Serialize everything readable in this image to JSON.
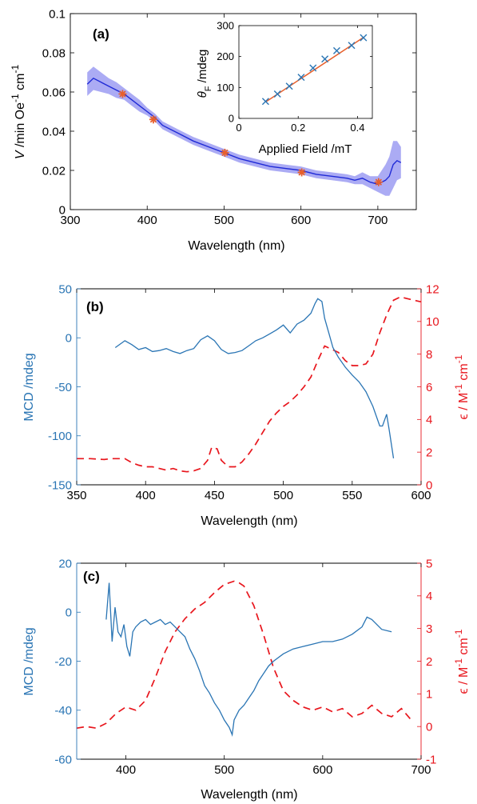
{
  "chart_data": [
    {
      "panel": "(a)",
      "type": "line",
      "xlabel": "Wavelength (nm)",
      "ylabel": "V /min Oe -1 cm -1",
      "ylabel_parts": {
        "v": "V",
        "unit": " /min Oe",
        "sup1": "-1",
        "cm": " cm",
        "sup2": "-1"
      },
      "xlim": [
        300,
        750
      ],
      "ylim": [
        0,
        0.1
      ],
      "xticks": [
        "300",
        "400",
        "500",
        "600",
        "700"
      ],
      "yticks": [
        "0",
        "0.02",
        "0.04",
        "0.06",
        "0.08",
        "0.1"
      ],
      "series": [
        {
          "role": "verdet-spectrum",
          "color": "#1f2ad6",
          "band_color": "#8f8ff0",
          "x": [
            322,
            330,
            340,
            350,
            360,
            370,
            380,
            390,
            400,
            410,
            420,
            440,
            460,
            480,
            500,
            520,
            540,
            560,
            580,
            600,
            620,
            640,
            660,
            670,
            680,
            690,
            700,
            705,
            710,
            715,
            720,
            725,
            730
          ],
          "values": [
            0.064,
            0.067,
            0.065,
            0.063,
            0.061,
            0.059,
            0.056,
            0.053,
            0.05,
            0.047,
            0.043,
            0.039,
            0.035,
            0.032,
            0.029,
            0.026,
            0.024,
            0.022,
            0.021,
            0.02,
            0.018,
            0.017,
            0.016,
            0.015,
            0.016,
            0.014,
            0.013,
            0.014,
            0.015,
            0.017,
            0.023,
            0.025,
            0.024
          ],
          "band": [
            0.006,
            0.006,
            0.005,
            0.004,
            0.004,
            0.003,
            0.003,
            0.003,
            0.002,
            0.002,
            0.002,
            0.002,
            0.002,
            0.002,
            0.002,
            0.002,
            0.002,
            0.002,
            0.002,
            0.002,
            0.002,
            0.002,
            0.002,
            0.002,
            0.003,
            0.003,
            0.004,
            0.006,
            0.008,
            0.01,
            0.012,
            0.01,
            0.008
          ]
        },
        {
          "role": "measured-points",
          "marker": "asterisk",
          "color": "#e8602c",
          "x": [
            368,
            408,
            501,
            601,
            701
          ],
          "values": [
            0.059,
            0.046,
            0.029,
            0.019,
            0.014
          ]
        }
      ],
      "inset": {
        "type": "scatter",
        "xlabel": "Applied Field /mT",
        "ylabel_parts": {
          "theta": "θ",
          "sub": "F",
          "unit": " /mdeg"
        },
        "xlim": [
          0,
          0.45
        ],
        "ylim": [
          0,
          300
        ],
        "xticks": [
          "0",
          "0.2",
          "0.4"
        ],
        "yticks": [
          "0",
          "100",
          "200",
          "300"
        ],
        "series": [
          {
            "role": "data",
            "marker": "x",
            "color": "#2a75b4",
            "x": [
              0.09,
              0.13,
              0.17,
              0.21,
              0.25,
              0.29,
              0.33,
              0.38,
              0.42
            ],
            "values": [
              55,
              79,
              104,
              133,
              163,
              192,
              219,
              236,
              261
            ]
          },
          {
            "role": "fit",
            "color": "#e8602c",
            "x": [
              0.09,
              0.42
            ],
            "values": [
              53,
              262
            ]
          }
        ]
      }
    },
    {
      "panel": "(b)",
      "type": "line",
      "xlabel": "Wavelength (nm)",
      "ylabel_left": "MCD /mdeg",
      "ylabel_right_parts": {
        "eps": "ϵ",
        "unit": " / M",
        "sup1": "-1",
        "cm": " cm",
        "sup2": "-1"
      },
      "xlim": [
        350,
        600
      ],
      "ylim_left": [
        -150,
        50
      ],
      "ylim_right": [
        0,
        12
      ],
      "xticks": [
        "350",
        "400",
        "450",
        "500",
        "550",
        "600"
      ],
      "yticks_left": [
        "-150",
        "-100",
        "-50",
        "0",
        "50"
      ],
      "yticks_right": [
        "0",
        "2",
        "4",
        "6",
        "8",
        "10",
        "12"
      ],
      "series": [
        {
          "role": "MCD",
          "axis": "left",
          "color": "#2a75b4",
          "x": [
            378,
            385,
            390,
            395,
            400,
            405,
            410,
            415,
            420,
            425,
            430,
            435,
            440,
            445,
            450,
            455,
            460,
            465,
            470,
            475,
            480,
            485,
            490,
            495,
            500,
            505,
            510,
            515,
            520,
            523,
            525,
            528,
            530,
            533,
            536,
            540,
            545,
            550,
            555,
            560,
            565,
            570,
            572,
            575,
            577,
            580
          ],
          "values": [
            -10,
            -3,
            -7,
            -12,
            -10,
            -14,
            -13,
            -11,
            -14,
            -16,
            -13,
            -11,
            -2,
            2,
            -3,
            -12,
            -16,
            -15,
            -13,
            -8,
            -3,
            0,
            4,
            8,
            13,
            5,
            14,
            18,
            25,
            35,
            40,
            37,
            20,
            5,
            -10,
            -20,
            -30,
            -38,
            -45,
            -55,
            -70,
            -90,
            -90,
            -78,
            -95,
            -123
          ]
        },
        {
          "role": "extinction",
          "axis": "right",
          "color": "#e8161d",
          "dashed": true,
          "x": [
            350,
            360,
            370,
            375,
            380,
            385,
            390,
            395,
            400,
            405,
            410,
            415,
            420,
            425,
            430,
            435,
            440,
            445,
            448,
            452,
            455,
            460,
            465,
            470,
            475,
            480,
            485,
            490,
            495,
            500,
            505,
            510,
            515,
            520,
            525,
            530,
            535,
            540,
            545,
            550,
            555,
            560,
            565,
            570,
            575,
            580,
            585,
            590,
            595,
            600
          ],
          "values": [
            1.6,
            1.6,
            1.55,
            1.6,
            1.6,
            1.6,
            1.35,
            1.2,
            1.1,
            1.1,
            1.0,
            0.9,
            1.0,
            0.85,
            0.8,
            0.85,
            1.0,
            1.5,
            2.3,
            2.2,
            1.5,
            1.1,
            1.1,
            1.4,
            1.9,
            2.5,
            3.2,
            3.9,
            4.4,
            4.8,
            5.1,
            5.5,
            6.0,
            6.6,
            7.6,
            8.5,
            8.3,
            8.1,
            7.6,
            7.3,
            7.3,
            7.4,
            8.0,
            9.3,
            10.4,
            11.3,
            11.5,
            11.4,
            11.3,
            11.2
          ]
        }
      ]
    },
    {
      "panel": "(c)",
      "type": "line",
      "xlabel": "Wavelength (nm)",
      "ylabel_left": "MCD /mdeg",
      "ylabel_right_parts": {
        "eps": "ϵ",
        "unit": " / M",
        "sup1": "-1",
        "cm": " cm",
        "sup2": "-1"
      },
      "xlim": [
        350,
        700
      ],
      "ylim_left": [
        -60,
        20
      ],
      "ylim_right": [
        -1,
        5
      ],
      "xticks": [
        "400",
        "500",
        "600",
        "700"
      ],
      "yticks_left": [
        "-60",
        "-40",
        "-20",
        "0",
        "20"
      ],
      "yticks_right": [
        "-1",
        "0",
        "1",
        "2",
        "3",
        "4",
        "5"
      ],
      "series": [
        {
          "role": "MCD",
          "axis": "left",
          "color": "#2a75b4",
          "x": [
            380,
            383,
            386,
            389,
            392,
            395,
            398,
            401,
            404,
            407,
            410,
            415,
            420,
            425,
            430,
            435,
            440,
            445,
            450,
            455,
            460,
            465,
            470,
            475,
            480,
            485,
            490,
            495,
            500,
            505,
            508,
            510,
            515,
            520,
            525,
            530,
            535,
            540,
            545,
            550,
            560,
            570,
            580,
            590,
            600,
            610,
            620,
            630,
            640,
            645,
            650,
            660,
            670
          ],
          "values": [
            -3,
            12,
            -12,
            2,
            -8,
            -10,
            -5,
            -14,
            -18,
            -8,
            -6,
            -4,
            -3,
            -5,
            -4,
            -3,
            -5,
            -4,
            -6,
            -8,
            -10,
            -15,
            -19,
            -24,
            -30,
            -33,
            -37,
            -40,
            -44,
            -47,
            -50,
            -44,
            -40,
            -38,
            -35,
            -32,
            -28,
            -25,
            -22,
            -20,
            -17,
            -15,
            -14,
            -13,
            -12,
            -12,
            -11,
            -9,
            -6,
            -2,
            -3,
            -7,
            -8
          ]
        },
        {
          "role": "extinction",
          "axis": "right",
          "color": "#e8161d",
          "dashed": true,
          "x": [
            350,
            360,
            370,
            380,
            390,
            400,
            410,
            420,
            430,
            440,
            450,
            460,
            470,
            480,
            490,
            500,
            510,
            515,
            520,
            530,
            540,
            550,
            560,
            570,
            580,
            590,
            600,
            610,
            620,
            630,
            640,
            650,
            660,
            670,
            680,
            690
          ],
          "values": [
            -0.05,
            0.0,
            -0.05,
            0.1,
            0.4,
            0.6,
            0.5,
            0.8,
            1.5,
            2.3,
            2.9,
            3.3,
            3.6,
            3.8,
            4.1,
            4.35,
            4.45,
            4.4,
            4.3,
            3.7,
            2.8,
            1.8,
            1.1,
            0.8,
            0.6,
            0.5,
            0.6,
            0.45,
            0.55,
            0.3,
            0.4,
            0.65,
            0.4,
            0.3,
            0.55,
            0.2
          ]
        }
      ]
    }
  ]
}
